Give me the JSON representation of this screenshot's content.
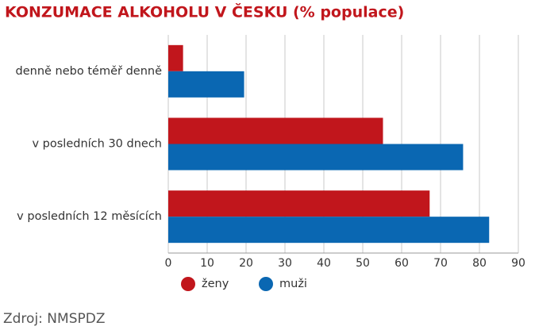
{
  "chart_data": {
    "type": "bar",
    "orientation": "horizontal",
    "title": "KONZUMACE ALKOHOLU V ČESKU (% populace)",
    "categories": [
      "denně nebo téměř denně",
      "v posledních 30 dnech",
      "v posledních 12 měsících"
    ],
    "series": [
      {
        "name": "ženy",
        "color": "#c1161c",
        "values": [
          3.8,
          55.2,
          67.2
        ]
      },
      {
        "name": "muži",
        "color": "#0a67b2",
        "values": [
          19.5,
          75.8,
          82.5
        ]
      }
    ],
    "xlim": [
      0,
      90
    ],
    "xticks": [
      0,
      10,
      20,
      30,
      40,
      50,
      60,
      70,
      80,
      90
    ],
    "grid": true,
    "source": "Zdroj: NMSPDZ"
  }
}
